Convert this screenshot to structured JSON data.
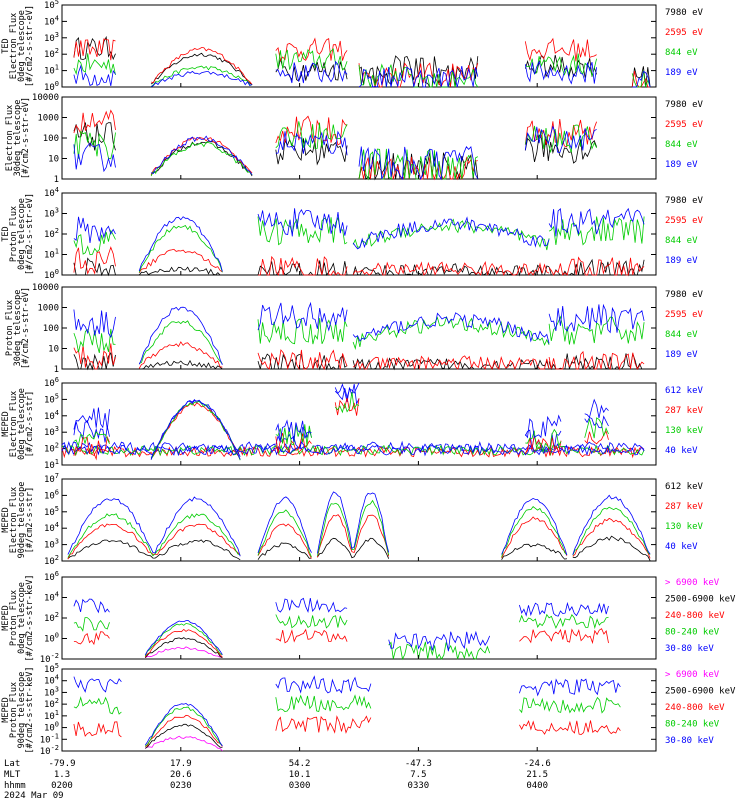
{
  "chart_data": [
    {
      "type": "line",
      "ylabel": [
        "TED",
        "Electron Flux",
        "0deg telescope",
        "[#/cm2-s-str-eV]"
      ],
      "yscale": "log",
      "ylim_exp": [
        0,
        5
      ],
      "ytick_labels": [
        "10^0",
        "10^1",
        "10^2",
        "10^3",
        "10^4",
        "10^5"
      ],
      "tick_format": "exp",
      "series": [
        {
          "name": "7980 eV",
          "color": "#000000"
        },
        {
          "name": "2595 eV",
          "color": "#ff0000"
        },
        {
          "name": "844 eV",
          "color": "#00cc00"
        },
        {
          "name": "189 eV",
          "color": "#0000ff"
        }
      ],
      "segments": [
        {
          "t": [
            0.02,
            0.09
          ],
          "levels": [
            2.5,
            2.4,
            1.5,
            0.8
          ],
          "shape": "spiky"
        },
        {
          "t": [
            0.15,
            0.32
          ],
          "levels": [
            2.0,
            2.3,
            1.2,
            0.9
          ],
          "shape": "dome"
        },
        {
          "t": [
            0.36,
            0.48
          ],
          "levels": [
            1.2,
            2.4,
            1.8,
            1.0
          ],
          "shape": "spiky"
        },
        {
          "t": [
            0.5,
            0.7
          ],
          "levels": [
            1.4,
            1.0,
            0.9,
            0.8
          ],
          "shape": "sparse"
        },
        {
          "t": [
            0.78,
            0.9
          ],
          "levels": [
            1.4,
            2.4,
            1.5,
            1.0
          ],
          "shape": "spiky"
        },
        {
          "t": [
            0.96,
            0.99
          ],
          "levels": [
            0.9,
            0.8,
            0.6,
            0.5
          ],
          "shape": "sparse"
        }
      ]
    },
    {
      "type": "line",
      "ylabel": [
        "Electron Flux",
        "30deg telescope",
        "[#/cm2-s-str-eV]"
      ],
      "yscale": "log",
      "ylim_exp": [
        0,
        4
      ],
      "ytick_labels": [
        "1",
        "10",
        "100",
        "1000",
        "10000"
      ],
      "tick_format": "plain",
      "series": [
        {
          "name": "7980 eV",
          "color": "#000000"
        },
        {
          "name": "2595 eV",
          "color": "#ff0000"
        },
        {
          "name": "844 eV",
          "color": "#00cc00"
        },
        {
          "name": "189 eV",
          "color": "#0000ff"
        }
      ],
      "segments": [
        {
          "t": [
            0.02,
            0.09
          ],
          "levels": [
            2.2,
            2.8,
            1.8,
            1.2
          ],
          "shape": "spiky"
        },
        {
          "t": [
            0.15,
            0.32
          ],
          "levels": [
            1.8,
            2.0,
            1.7,
            2.0
          ],
          "shape": "dome"
        },
        {
          "t": [
            0.36,
            0.48
          ],
          "levels": [
            1.5,
            2.5,
            2.3,
            1.9
          ],
          "shape": "spiky"
        },
        {
          "t": [
            0.5,
            0.7
          ],
          "levels": [
            0.8,
            0.6,
            1.0,
            1.1
          ],
          "shape": "sparse"
        },
        {
          "t": [
            0.78,
            0.9
          ],
          "levels": [
            1.6,
            2.4,
            2.1,
            2.1
          ],
          "shape": "spiky"
        }
      ]
    },
    {
      "type": "line",
      "ylabel": [
        "TED",
        "Proton Flux",
        "0deg telescope",
        "[#/cm2-s-str-eV]"
      ],
      "yscale": "log",
      "ylim_exp": [
        0,
        4
      ],
      "ytick_labels": [
        "10^0",
        "10^1",
        "10^2",
        "10^3",
        "10^4"
      ],
      "tick_format": "exp",
      "series": [
        {
          "name": "7980 eV",
          "color": "#000000"
        },
        {
          "name": "2595 eV",
          "color": "#ff0000"
        },
        {
          "name": "844 eV",
          "color": "#00cc00"
        },
        {
          "name": "189 eV",
          "color": "#0000ff"
        }
      ],
      "segments": [
        {
          "t": [
            0.02,
            0.09
          ],
          "levels": [
            0.3,
            0.8,
            1.8,
            2.3
          ],
          "shape": "spiky"
        },
        {
          "t": [
            0.13,
            0.27
          ],
          "levels": [
            0.3,
            1.2,
            2.4,
            2.8
          ],
          "shape": "dome"
        },
        {
          "t": [
            0.33,
            0.48
          ],
          "levels": [
            0.2,
            0.4,
            2.3,
            2.7
          ],
          "shape": "spiky"
        },
        {
          "t": [
            0.49,
            0.82
          ],
          "levels": [
            0.2,
            0.3,
            2.4,
            2.5
          ],
          "shape": "wave"
        },
        {
          "t": [
            0.82,
            0.98
          ],
          "levels": [
            0.2,
            0.3,
            2.3,
            2.7
          ],
          "shape": "spiky"
        }
      ]
    },
    {
      "type": "line",
      "ylabel": [
        "Proton Flux",
        "30deg telescope",
        "[#/cm2-s-str-eV]"
      ],
      "yscale": "log",
      "ylim_exp": [
        0,
        4
      ],
      "ytick_labels": [
        "1",
        "10",
        "100",
        "1000",
        "10000"
      ],
      "tick_format": "plain",
      "series": [
        {
          "name": "7980 eV",
          "color": "#000000"
        },
        {
          "name": "2595 eV",
          "color": "#ff0000"
        },
        {
          "name": "844 eV",
          "color": "#00cc00"
        },
        {
          "name": "189 eV",
          "color": "#0000ff"
        }
      ],
      "segments": [
        {
          "t": [
            0.02,
            0.09
          ],
          "levels": [
            0.3,
            0.8,
            1.6,
            2.4
          ],
          "shape": "spiky"
        },
        {
          "t": [
            0.13,
            0.27
          ],
          "levels": [
            0.3,
            1.2,
            2.3,
            3.0
          ],
          "shape": "dome"
        },
        {
          "t": [
            0.33,
            0.48
          ],
          "levels": [
            0.2,
            0.4,
            2.0,
            2.7
          ],
          "shape": "spiky"
        },
        {
          "t": [
            0.49,
            0.82
          ],
          "levels": [
            0.2,
            0.3,
            2.2,
            2.4
          ],
          "shape": "wave"
        },
        {
          "t": [
            0.82,
            0.98
          ],
          "levels": [
            0.2,
            0.3,
            2.0,
            2.6
          ],
          "shape": "spiky"
        }
      ]
    },
    {
      "type": "line",
      "ylabel": [
        "MEPED",
        "Electron Flux",
        "0deg telescope",
        "[#/cm2-s-str]"
      ],
      "yscale": "log",
      "ylim_exp": [
        1,
        6
      ],
      "ytick_labels": [
        "10^1",
        "10^2",
        "10^3",
        "10^4",
        "10^5",
        "10^6"
      ],
      "tick_format": "exp",
      "series": [
        {
          "name": "612 keV",
          "color": "#0000ff"
        },
        {
          "name": "287 keV",
          "color": "#ff0000"
        },
        {
          "name": "130 keV",
          "color": "#00cc00"
        },
        {
          "name": "40 keV",
          "color": "#0000ff"
        }
      ],
      "segments": [
        {
          "t": [
            0.0,
            0.98
          ],
          "levels": [
            2.1,
            1.8,
            1.9,
            1.9
          ],
          "shape": "noise"
        },
        {
          "t": [
            0.02,
            0.08
          ],
          "levels": [
            3.2,
            2.2,
            2.6,
            4.0
          ],
          "shape": "spiky"
        },
        {
          "t": [
            0.15,
            0.3
          ],
          "levels": [
            4.9,
            4.7,
            4.8,
            4.9
          ],
          "shape": "dome"
        },
        {
          "t": [
            0.36,
            0.42
          ],
          "levels": [
            2.8,
            2.4,
            3.0,
            3.2
          ],
          "shape": "spiky"
        },
        {
          "t": [
            0.46,
            0.5
          ],
          "levels": [
            5.5,
            4.6,
            5.0,
            5.8
          ],
          "shape": "spiky"
        },
        {
          "t": [
            0.78,
            0.84
          ],
          "levels": [
            2.6,
            2.3,
            2.6,
            3.5
          ],
          "shape": "spiky"
        },
        {
          "t": [
            0.88,
            0.92
          ],
          "levels": [
            3.6,
            2.9,
            3.4,
            4.6
          ],
          "shape": "spiky"
        }
      ]
    },
    {
      "type": "line",
      "ylabel": [
        "MEPED",
        "Electron Flux",
        "90deg telescope",
        "[#/cm2-s-str]"
      ],
      "yscale": "log",
      "ylim_exp": [
        2,
        7
      ],
      "ytick_labels": [
        "10^2",
        "10^3",
        "10^4",
        "10^5",
        "10^6",
        "10^7"
      ],
      "tick_format": "exp",
      "series": [
        {
          "name": "612 keV",
          "color": "#000000"
        },
        {
          "name": "287 keV",
          "color": "#ff0000"
        },
        {
          "name": "130 keV",
          "color": "#00cc00"
        },
        {
          "name": "40 keV",
          "color": "#0000ff"
        }
      ],
      "segments": [
        {
          "t": [
            0.01,
            0.3
          ],
          "levels": [
            3.2,
            4.2,
            4.8,
            5.8
          ],
          "shape": "double"
        },
        {
          "t": [
            0.33,
            0.42
          ],
          "levels": [
            3.0,
            4.2,
            5.0,
            5.8
          ],
          "shape": "dome"
        },
        {
          "t": [
            0.43,
            0.55
          ],
          "levels": [
            3.3,
            4.8,
            5.6,
            6.2
          ],
          "shape": "double"
        },
        {
          "t": [
            0.74,
            0.85
          ],
          "levels": [
            3.0,
            4.6,
            5.2,
            5.8
          ],
          "shape": "dome"
        },
        {
          "t": [
            0.86,
            0.99
          ],
          "levels": [
            3.4,
            4.5,
            5.2,
            5.9
          ],
          "shape": "dome"
        }
      ]
    },
    {
      "type": "line",
      "ylabel": [
        "MEPED",
        "Proton Flux",
        "0deg telescope",
        "[#/cm2-s-str-keV]"
      ],
      "yscale": "log",
      "ylim_exp": [
        -2,
        6
      ],
      "ytick_labels": [
        "10^-2",
        "10^0",
        "10^2",
        "10^4",
        "10^6"
      ],
      "tick_format": "exp",
      "series": [
        {
          "name": "> 6900 keV",
          "color": "#ff00ff"
        },
        {
          "name": "2500-6900 keV",
          "color": "#000000"
        },
        {
          "name": "240-800 keV",
          "color": "#ff0000"
        },
        {
          "name": "80-240 keV",
          "color": "#00cc00"
        },
        {
          "name": "30-80 keV",
          "color": "#0000ff"
        }
      ],
      "segments": [
        {
          "t": [
            0.02,
            0.08
          ],
          "levels": [
            -9,
            -9,
            0.2,
            1.6,
            3.4
          ],
          "shape": "spiky"
        },
        {
          "t": [
            0.14,
            0.27
          ],
          "levels": [
            -0.9,
            0.0,
            0.8,
            1.4,
            1.7
          ],
          "shape": "dome"
        },
        {
          "t": [
            0.36,
            0.48
          ],
          "levels": [
            -9,
            -9,
            0.3,
            1.8,
            3.4
          ],
          "shape": "spiky"
        },
        {
          "t": [
            0.55,
            0.72
          ],
          "levels": [
            -9,
            -9,
            -9,
            -0.8,
            0.2
          ],
          "shape": "sparse"
        },
        {
          "t": [
            0.77,
            0.92
          ],
          "levels": [
            -9,
            -9,
            0.4,
            1.8,
            3.0
          ],
          "shape": "spiky"
        }
      ]
    },
    {
      "type": "line",
      "ylabel": [
        "MEPED",
        "Proton Flux",
        "90deg telescope",
        "[#/cm2-s-str-keV]"
      ],
      "yscale": "log",
      "ylim_exp": [
        -2,
        5
      ],
      "ytick_labels": [
        "10^-2",
        "10^-1",
        "10^0",
        "10^1",
        "10^2",
        "10^3",
        "10^4",
        "10^5"
      ],
      "tick_format": "exp",
      "series": [
        {
          "name": "> 6900 keV",
          "color": "#ff00ff"
        },
        {
          "name": "2500-6900 keV",
          "color": "#000000"
        },
        {
          "name": "240-800 keV",
          "color": "#ff0000"
        },
        {
          "name": "80-240 keV",
          "color": "#00cc00"
        },
        {
          "name": "30-80 keV",
          "color": "#0000ff"
        }
      ],
      "segments": [
        {
          "t": [
            0.02,
            0.1
          ],
          "levels": [
            -9,
            -9,
            0.0,
            2.0,
            3.8
          ],
          "shape": "spiky"
        },
        {
          "t": [
            0.14,
            0.27
          ],
          "levels": [
            -0.8,
            0.2,
            1.0,
            1.7,
            2.0
          ],
          "shape": "dome"
        },
        {
          "t": [
            0.36,
            0.52
          ],
          "levels": [
            -9,
            -9,
            0.4,
            2.2,
            3.8
          ],
          "shape": "spiky"
        },
        {
          "t": [
            0.77,
            0.94
          ],
          "levels": [
            -9,
            -9,
            0.2,
            2.0,
            3.6
          ],
          "shape": "spiky"
        }
      ]
    }
  ],
  "x_axis": {
    "row_labels": [
      "Lat",
      "MLT",
      "hhmm",
      "2024 Mar 09"
    ],
    "ticks": [
      {
        "t": 0.0,
        "lat": "-79.9",
        "mlt": "1.3",
        "hhmm": "0200"
      },
      {
        "t": 0.2,
        "lat": "17.9",
        "mlt": "20.6",
        "hhmm": "0230"
      },
      {
        "t": 0.4,
        "lat": "54.2",
        "mlt": "10.1",
        "hhmm": "0300"
      },
      {
        "t": 0.6,
        "lat": "-47.3",
        "mlt": "7.5",
        "hhmm": "0330"
      },
      {
        "t": 0.8,
        "lat": "-24.6",
        "mlt": "21.5",
        "hhmm": "0400"
      }
    ]
  }
}
